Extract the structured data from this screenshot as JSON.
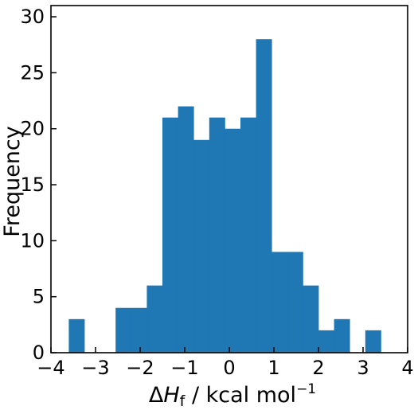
{
  "chart_data": {
    "type": "histogram",
    "title": "",
    "xlabel": {
      "delta": "Δ",
      "symbol": "H",
      "subscript": "f",
      "unit_text": " / kcal mol",
      "unit_superscript": "−1"
    },
    "ylabel": "Frequency",
    "xlim": [
      -4,
      4
    ],
    "ylim": [
      0,
      31
    ],
    "xticks": [
      -4,
      -3,
      -2,
      -1,
      0,
      1,
      2,
      3,
      4
    ],
    "xtick_labels": [
      "−4",
      "−3",
      "−2",
      "−1",
      "0",
      "1",
      "2",
      "3",
      "4"
    ],
    "yticks": [
      0,
      5,
      10,
      15,
      20,
      25,
      30
    ],
    "ytick_labels": [
      "0",
      "5",
      "10",
      "15",
      "20",
      "25",
      "30"
    ],
    "bins": [
      {
        "x0": -3.6,
        "x1": -3.25,
        "count": 3
      },
      {
        "x0": -3.25,
        "x1": -2.9,
        "count": 0
      },
      {
        "x0": -2.9,
        "x1": -2.55,
        "count": 0
      },
      {
        "x0": -2.55,
        "x1": -2.2,
        "count": 4
      },
      {
        "x0": -2.2,
        "x1": -1.85,
        "count": 4
      },
      {
        "x0": -1.85,
        "x1": -1.5,
        "count": 6
      },
      {
        "x0": -1.5,
        "x1": -1.15,
        "count": 21
      },
      {
        "x0": -1.15,
        "x1": -0.8,
        "count": 22
      },
      {
        "x0": -0.8,
        "x1": -0.45,
        "count": 19
      },
      {
        "x0": -0.45,
        "x1": -0.1,
        "count": 21
      },
      {
        "x0": -0.1,
        "x1": 0.25,
        "count": 20
      },
      {
        "x0": 0.25,
        "x1": 0.6,
        "count": 21
      },
      {
        "x0": 0.6,
        "x1": 0.95,
        "count": 28
      },
      {
        "x0": 0.95,
        "x1": 1.3,
        "count": 9
      },
      {
        "x0": 1.3,
        "x1": 1.65,
        "count": 9
      },
      {
        "x0": 1.65,
        "x1": 2.0,
        "count": 6
      },
      {
        "x0": 2.0,
        "x1": 2.35,
        "count": 2
      },
      {
        "x0": 2.35,
        "x1": 2.7,
        "count": 3
      },
      {
        "x0": 2.7,
        "x1": 3.05,
        "count": 0
      },
      {
        "x0": 3.05,
        "x1": 3.4,
        "count": 2
      }
    ],
    "bar_color": "#1f77b4",
    "grid": false,
    "tick_direction": "in"
  }
}
